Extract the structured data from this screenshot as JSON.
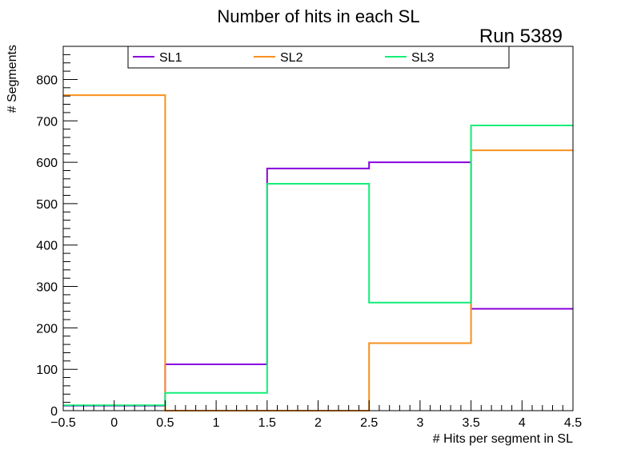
{
  "chart_data": {
    "type": "line",
    "style": "step-histogram",
    "title": "Number of hits in each SL",
    "annotation": "Run 5389",
    "xlabel": "# Hits per segment in SL",
    "ylabel": "# Segments",
    "xlim": [
      -0.5,
      4.5
    ],
    "ylim": [
      0,
      880
    ],
    "bin_edges": [
      -0.5,
      0.5,
      1.5,
      2.5,
      3.5,
      4.5
    ],
    "categories": [
      0,
      1,
      2,
      3,
      4
    ],
    "x_ticks": [
      {
        "value": -0.5,
        "label": "−0.5"
      },
      {
        "value": 0,
        "label": "0"
      },
      {
        "value": 0.5,
        "label": "0.5"
      },
      {
        "value": 1,
        "label": "1"
      },
      {
        "value": 1.5,
        "label": "1.5"
      },
      {
        "value": 2,
        "label": "2"
      },
      {
        "value": 2.5,
        "label": "2.5"
      },
      {
        "value": 3,
        "label": "3"
      },
      {
        "value": 3.5,
        "label": "3.5"
      },
      {
        "value": 4,
        "label": "4"
      },
      {
        "value": 4.5,
        "label": "4.5"
      }
    ],
    "y_ticks": [
      {
        "value": 0,
        "label": "0"
      },
      {
        "value": 100,
        "label": "100"
      },
      {
        "value": 200,
        "label": "200"
      },
      {
        "value": 300,
        "label": "300"
      },
      {
        "value": 400,
        "label": "400"
      },
      {
        "value": 500,
        "label": "500"
      },
      {
        "value": 600,
        "label": "600"
      },
      {
        "value": 700,
        "label": "700"
      },
      {
        "value": 800,
        "label": "800"
      }
    ],
    "legend_position": "top",
    "grid": false,
    "series": [
      {
        "name": "SL1",
        "color": "#8800dd",
        "values": [
          12,
          112,
          585,
          600,
          246
        ]
      },
      {
        "name": "SL2",
        "color": "#f7901e",
        "values": [
          762,
          0,
          0,
          163,
          629
        ]
      },
      {
        "name": "SL3",
        "color": "#11ee77",
        "values": [
          13,
          43,
          548,
          261,
          689
        ]
      }
    ]
  }
}
